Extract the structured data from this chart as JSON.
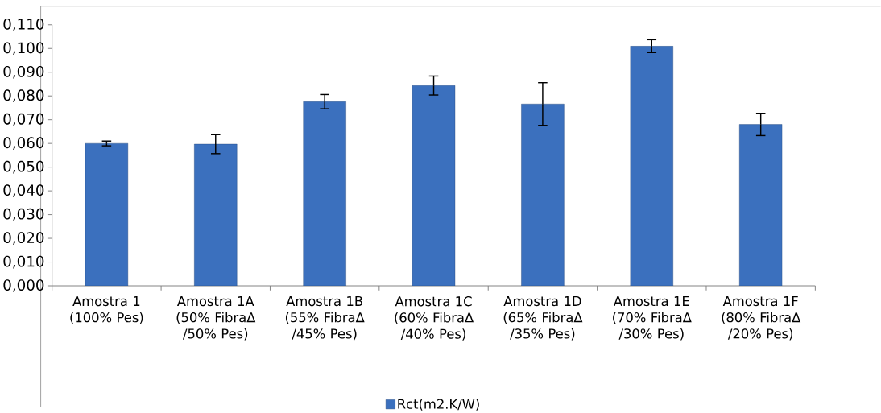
{
  "chart_data": {
    "type": "bar",
    "categories": [
      "Amostra 1 (100% Pes)",
      "Amostra 1A (50% FibraΔ /50% Pes)",
      "Amostra 1B (55% FibraΔ /45% Pes)",
      "Amostra 1C (60% FibraΔ /40% Pes)",
      "Amostra 1D (65% FibraΔ /35% Pes)",
      "Amostra 1E (70% FibraΔ /30% Pes)",
      "Amostra 1F (80% FibraΔ /20% Pes)"
    ],
    "series": [
      {
        "name": "Rct(m2.K/W)",
        "color": "#3b70be",
        "values": [
          0.06,
          0.0597,
          0.0776,
          0.0844,
          0.0766,
          0.101,
          0.068
        ],
        "errors": [
          0.001,
          0.004,
          0.003,
          0.004,
          0.009,
          0.0027,
          0.0047
        ]
      }
    ],
    "ylim": [
      0,
      0.11
    ],
    "yticks": [
      {
        "value": 0,
        "label": "0,000"
      },
      {
        "value": 0.01,
        "label": "0,010"
      },
      {
        "value": 0.02,
        "label": "0,020"
      },
      {
        "value": 0.03,
        "label": "0,030"
      },
      {
        "value": 0.04,
        "label": "0,040"
      },
      {
        "value": 0.05,
        "label": "0,050"
      },
      {
        "value": 0.06,
        "label": "0,060"
      },
      {
        "value": 0.07,
        "label": "0,070"
      },
      {
        "value": 0.08,
        "label": "0,080"
      },
      {
        "value": 0.09,
        "label": "0,090"
      },
      {
        "value": 0.1,
        "label": "0,100"
      },
      {
        "value": 0.11,
        "label": "0,110"
      }
    ],
    "grid": false,
    "legend": "bottom"
  }
}
